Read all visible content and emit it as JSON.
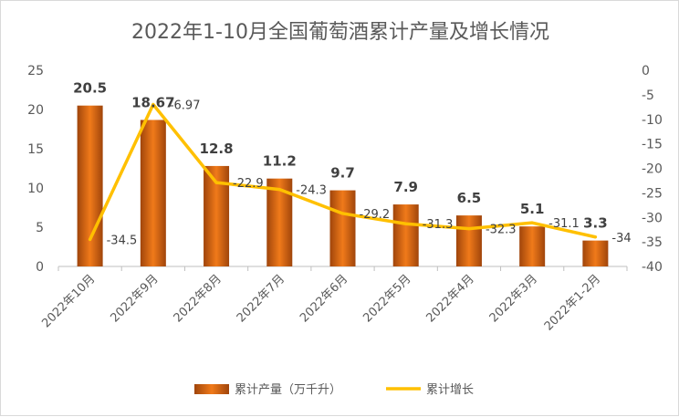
{
  "chart_data": {
    "type": "bar",
    "title": "2022年1-10月全国葡萄酒累计产量及增长情况",
    "categories": [
      "2022年10月",
      "2022年9月",
      "2022年8月",
      "2022年7月",
      "2022年6月",
      "2022年5月",
      "2022年4月",
      "2022年3月",
      "2022年1-2月"
    ],
    "series": [
      {
        "name": "累计产量（万千升）",
        "type": "bar",
        "axis": "left",
        "values": [
          20.5,
          18.67,
          12.8,
          11.2,
          9.7,
          7.9,
          6.5,
          5.1,
          3.3
        ],
        "labels": [
          "20.5",
          "18.67",
          "12.8",
          "11.2",
          "9.7",
          "7.9",
          "6.5",
          "5.1",
          "3.3"
        ],
        "color": "#e36c0a"
      },
      {
        "name": "累计增长",
        "type": "line",
        "axis": "right",
        "values": [
          -34.5,
          -6.97,
          -22.9,
          -24.3,
          -29.2,
          -31.3,
          -32.3,
          -31.1,
          -34
        ],
        "labels": [
          "-34.5",
          "-6.97",
          "-22.9",
          "-24.3",
          "-29.2",
          "-31.3",
          "-32.3",
          "-31.1",
          "-34"
        ],
        "color": "#ffc000"
      }
    ],
    "y_left": {
      "min": 0,
      "max": 25,
      "ticks": [
        "0",
        "5",
        "10",
        "15",
        "20",
        "25"
      ]
    },
    "y_right": {
      "min": -40,
      "max": 0,
      "ticks": [
        "0",
        "-5",
        "-10",
        "-15",
        "-20",
        "-25",
        "-30",
        "-35",
        "-40"
      ]
    },
    "legend_position": "bottom"
  }
}
